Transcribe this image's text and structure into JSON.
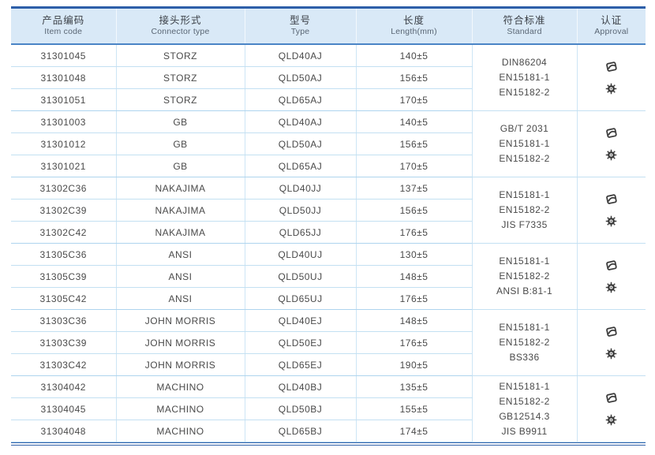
{
  "table": {
    "columns": [
      {
        "zh": "产品编码",
        "en": "Item code"
      },
      {
        "zh": "接头形式",
        "en": "Connector type"
      },
      {
        "zh": "型号",
        "en": "Type"
      },
      {
        "zh": "长度",
        "en": "Length(mm)"
      },
      {
        "zh": "符合标准",
        "en": "Standard"
      },
      {
        "zh": "认证",
        "en": "Approval"
      }
    ],
    "groups": [
      {
        "rows": [
          {
            "item_code": "31301045",
            "connector_type": "STORZ",
            "type": "QLD40AJ",
            "length": "140±5"
          },
          {
            "item_code": "31301048",
            "connector_type": "STORZ",
            "type": "QLD50AJ",
            "length": "156±5"
          },
          {
            "item_code": "31301051",
            "connector_type": "STORZ",
            "type": "QLD65AJ",
            "length": "170±5"
          }
        ],
        "standards": [
          "DIN86204",
          "EN15181-1",
          "EN15182-2"
        ],
        "approval_icons": [
          "certificate-mark",
          "gear-seal"
        ]
      },
      {
        "rows": [
          {
            "item_code": "31301003",
            "connector_type": "GB",
            "type": "QLD40AJ",
            "length": "140±5"
          },
          {
            "item_code": "31301012",
            "connector_type": "GB",
            "type": "QLD50AJ",
            "length": "156±5"
          },
          {
            "item_code": "31301021",
            "connector_type": "GB",
            "type": "QLD65AJ",
            "length": "170±5"
          }
        ],
        "standards": [
          "GB/T 2031",
          "EN15181-1",
          "EN15182-2"
        ],
        "approval_icons": [
          "certificate-mark",
          "gear-seal"
        ]
      },
      {
        "rows": [
          {
            "item_code": "31302C36",
            "connector_type": "NAKAJIMA",
            "type": "QLD40JJ",
            "length": "137±5"
          },
          {
            "item_code": "31302C39",
            "connector_type": "NAKAJIMA",
            "type": "QLD50JJ",
            "length": "156±5"
          },
          {
            "item_code": "31302C42",
            "connector_type": "NAKAJIMA",
            "type": "QLD65JJ",
            "length": "176±5"
          }
        ],
        "standards": [
          "EN15181-1",
          "EN15182-2",
          "JIS F7335"
        ],
        "approval_icons": [
          "certificate-mark",
          "gear-seal"
        ]
      },
      {
        "rows": [
          {
            "item_code": "31305C36",
            "connector_type": "ANSI",
            "type": "QLD40UJ",
            "length": "130±5"
          },
          {
            "item_code": "31305C39",
            "connector_type": "ANSI",
            "type": "QLD50UJ",
            "length": "148±5"
          },
          {
            "item_code": "31305C42",
            "connector_type": "ANSI",
            "type": "QLD65UJ",
            "length": "176±5"
          }
        ],
        "standards": [
          "EN15181-1",
          "EN15182-2",
          "ANSI B:81-1"
        ],
        "approval_icons": [
          "certificate-mark",
          "gear-seal"
        ]
      },
      {
        "rows": [
          {
            "item_code": "31303C36",
            "connector_type": "JOHN MORRIS",
            "type": "QLD40EJ",
            "length": "148±5"
          },
          {
            "item_code": "31303C39",
            "connector_type": "JOHN MORRIS",
            "type": "QLD50EJ",
            "length": "176±5"
          },
          {
            "item_code": "31303C42",
            "connector_type": "JOHN MORRIS",
            "type": "QLD65EJ",
            "length": "190±5"
          }
        ],
        "standards": [
          "EN15181-1",
          "EN15182-2",
          "BS336"
        ],
        "approval_icons": [
          "certificate-mark",
          "gear-seal"
        ]
      },
      {
        "rows": [
          {
            "item_code": "31304042",
            "connector_type": "MACHINO",
            "type": "QLD40BJ",
            "length": "135±5"
          },
          {
            "item_code": "31304045",
            "connector_type": "MACHINO",
            "type": "QLD50BJ",
            "length": "155±5"
          },
          {
            "item_code": "31304048",
            "connector_type": "MACHINO",
            "type": "QLD65BJ",
            "length": "174±5"
          }
        ],
        "standards": [
          "EN15181-1",
          "EN15182-2",
          "GB12514.3",
          "JIS B9911"
        ],
        "approval_icons": [
          "certificate-mark",
          "gear-seal"
        ]
      }
    ]
  },
  "colors": {
    "accent_blue": "#2d5fa8",
    "header_bg": "#d9e9f7",
    "header_underline": "#4a85c6",
    "grid_line": "#c3e0f2",
    "text": "#4a4a4a"
  }
}
